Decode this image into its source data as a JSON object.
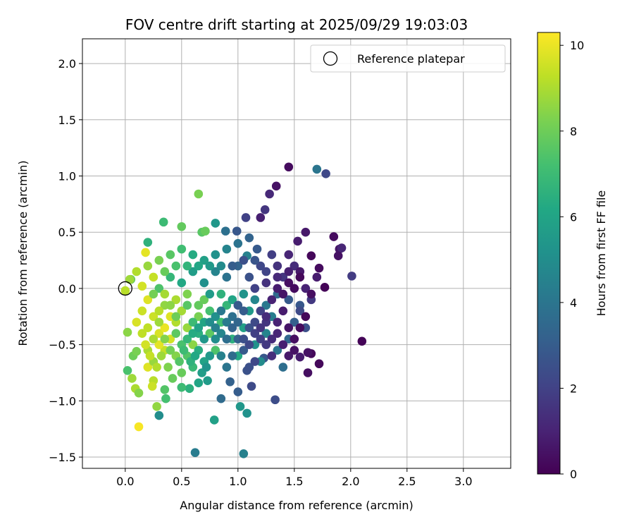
{
  "chart_data": {
    "type": "scatter",
    "title": "FOV centre drift starting at 2025/09/29 19:03:03",
    "xlabel": "Angular distance from reference (arcmin)",
    "ylabel": "Rotation from reference (arcmin)",
    "xlim": [
      -0.38,
      3.42
    ],
    "ylim": [
      -1.6,
      2.22
    ],
    "x_ticks": [
      0.0,
      0.5,
      1.0,
      1.5,
      2.0,
      2.5,
      3.0
    ],
    "x_tick_labels": [
      "0.0",
      "0.5",
      "1.0",
      "1.5",
      "2.0",
      "2.5",
      "3.0"
    ],
    "y_ticks": [
      -1.5,
      -1.0,
      -0.5,
      0.0,
      0.5,
      1.0,
      1.5,
      2.0
    ],
    "y_tick_labels": [
      "−1.5",
      "−1.0",
      "−0.5",
      "0.0",
      "0.5",
      "1.0",
      "1.5",
      "2.0"
    ],
    "grid": true,
    "legend": {
      "position": "top-right",
      "entries": [
        "Reference platepar"
      ]
    },
    "colorbar": {
      "label": "Hours from first FF file",
      "range": [
        0,
        10.3
      ],
      "ticks": [
        0,
        2,
        4,
        6,
        8,
        10
      ],
      "tick_labels": [
        "0",
        "2",
        "4",
        "6",
        "8",
        "10"
      ],
      "colormap": "viridis"
    },
    "reference_point": {
      "x": 0.0,
      "y": 0.0
    },
    "points": [
      [
        2.1,
        -0.47,
        0.1
      ],
      [
        1.45,
        1.08,
        0.3
      ],
      [
        1.72,
        -0.67,
        0.2
      ],
      [
        1.62,
        -0.75,
        0.4
      ],
      [
        1.78,
        1.02,
        2.2
      ],
      [
        1.7,
        1.06,
        4.0
      ],
      [
        1.9,
        0.35,
        0.6
      ],
      [
        1.92,
        0.36,
        1.1
      ],
      [
        2.01,
        0.11,
        1.8
      ],
      [
        1.85,
        0.46,
        0.3
      ],
      [
        1.89,
        0.29,
        0.5
      ],
      [
        1.34,
        0.91,
        0.5
      ],
      [
        1.28,
        0.84,
        1.2
      ],
      [
        1.24,
        0.7,
        1.6
      ],
      [
        1.2,
        0.63,
        0.9
      ],
      [
        1.07,
        0.63,
        2.0
      ],
      [
        1.6,
        0.5,
        0.7
      ],
      [
        1.53,
        0.42,
        0.8
      ],
      [
        1.65,
        0.29,
        0.2
      ],
      [
        1.72,
        0.18,
        0.3
      ],
      [
        1.77,
        0.01,
        0.1
      ],
      [
        1.65,
        -0.58,
        0.2
      ],
      [
        1.62,
        -0.57,
        0.5
      ],
      [
        1.55,
        -0.61,
        0.8
      ],
      [
        1.33,
        -0.99,
        2.4
      ],
      [
        1.08,
        -0.73,
        2.6
      ],
      [
        1.12,
        -0.87,
        2.3
      ],
      [
        1.23,
        -0.62,
        2.8
      ],
      [
        1.05,
        -1.47,
        4.5
      ],
      [
        1.08,
        -1.11,
        5.2
      ],
      [
        0.79,
        -1.17,
        5.8
      ],
      [
        0.62,
        -1.46,
        4.3
      ],
      [
        0.3,
        -1.13,
        5.0
      ],
      [
        1.0,
        -0.92,
        3.0
      ],
      [
        0.85,
        -0.98,
        3.6
      ],
      [
        0.93,
        -0.83,
        3.2
      ],
      [
        1.02,
        -1.05,
        5.4
      ],
      [
        0.73,
        -0.82,
        5.6
      ],
      [
        0.65,
        -0.84,
        6.0
      ],
      [
        0.57,
        -0.89,
        6.5
      ],
      [
        0.5,
        -0.88,
        7.0
      ],
      [
        0.36,
        -0.98,
        7.2
      ],
      [
        0.35,
        -0.9,
        7.5
      ],
      [
        0.28,
        -1.05,
        8.6
      ],
      [
        0.25,
        -0.82,
        9.2
      ],
      [
        0.24,
        -0.87,
        9.5
      ],
      [
        0.2,
        -0.7,
        9.8
      ],
      [
        0.12,
        -1.23,
        10.2
      ],
      [
        0.09,
        -0.89,
        9.0
      ],
      [
        0.12,
        -0.93,
        8.4
      ],
      [
        0.06,
        -0.8,
        8.8
      ],
      [
        0.02,
        -0.73,
        7.3
      ],
      [
        0.07,
        -0.6,
        8.0
      ],
      [
        0.1,
        -0.56,
        8.2
      ],
      [
        0.65,
        0.84,
        8.2
      ],
      [
        0.68,
        0.5,
        7.6
      ],
      [
        0.71,
        0.51,
        7.9
      ],
      [
        0.34,
        0.59,
        7.0
      ],
      [
        0.5,
        0.55,
        7.8
      ],
      [
        0.8,
        0.58,
        5.4
      ],
      [
        0.89,
        0.51,
        3.8
      ],
      [
        0.99,
        0.51,
        2.8
      ],
      [
        1.17,
        0.35,
        2.9
      ],
      [
        1.08,
        0.29,
        4.5
      ],
      [
        0.2,
        0.41,
        6.6
      ],
      [
        0.18,
        0.32,
        9.9
      ],
      [
        0.05,
        0.08,
        7.9
      ],
      [
        0.0,
        -0.02,
        9.2
      ],
      [
        0.02,
        -0.39,
        8.5
      ],
      [
        0.04,
        0.08,
        8.8
      ],
      [
        0.15,
        0.02,
        9.6
      ],
      [
        0.2,
        -0.1,
        9.8
      ],
      [
        0.25,
        -0.25,
        9.5
      ],
      [
        0.3,
        -0.4,
        9.7
      ],
      [
        0.35,
        -0.55,
        9.4
      ],
      [
        0.4,
        -0.45,
        9.6
      ],
      [
        0.45,
        -0.3,
        9.1
      ],
      [
        0.5,
        -0.2,
        8.9
      ],
      [
        0.55,
        -0.35,
        8.7
      ],
      [
        0.6,
        -0.5,
        8.5
      ],
      [
        0.65,
        -0.25,
        8.2
      ],
      [
        0.7,
        -0.1,
        7.9
      ],
      [
        0.75,
        -0.4,
        7.7
      ],
      [
        0.8,
        -0.55,
        7.4
      ],
      [
        0.85,
        -0.3,
        7.1
      ],
      [
        0.9,
        -0.15,
        6.8
      ],
      [
        0.95,
        -0.45,
        6.5
      ],
      [
        1.0,
        -0.6,
        6.2
      ],
      [
        1.05,
        -0.35,
        5.8
      ],
      [
        1.1,
        -0.2,
        5.5
      ],
      [
        1.15,
        -0.5,
        5.2
      ],
      [
        1.2,
        -0.65,
        4.9
      ],
      [
        1.25,
        -0.4,
        4.6
      ],
      [
        1.3,
        -0.25,
        4.3
      ],
      [
        1.35,
        -0.55,
        4.0
      ],
      [
        1.4,
        -0.7,
        3.7
      ],
      [
        1.45,
        -0.45,
        3.4
      ],
      [
        1.5,
        -0.3,
        3.1
      ],
      [
        1.55,
        -0.15,
        2.8
      ],
      [
        1.6,
        -0.35,
        2.5
      ],
      [
        1.2,
        0.2,
        2.2
      ],
      [
        1.3,
        0.3,
        1.9
      ],
      [
        1.4,
        0.1,
        1.6
      ],
      [
        1.5,
        0.2,
        1.3
      ],
      [
        1.6,
        0.0,
        1.0
      ],
      [
        1.7,
        0.1,
        0.8
      ],
      [
        1.1,
        0.1,
        2.6
      ],
      [
        1.0,
        0.2,
        3.3
      ],
      [
        0.9,
        0.1,
        3.9
      ],
      [
        0.8,
        0.15,
        4.6
      ],
      [
        0.7,
        0.05,
        5.1
      ],
      [
        0.6,
        0.15,
        5.7
      ],
      [
        0.5,
        0.05,
        6.2
      ],
      [
        0.4,
        0.1,
        6.8
      ],
      [
        0.3,
        0.0,
        7.4
      ],
      [
        0.25,
        -0.05,
        8.1
      ],
      [
        0.35,
        -0.15,
        8.6
      ],
      [
        0.45,
        -0.1,
        9.0
      ],
      [
        0.55,
        -0.05,
        8.3
      ],
      [
        0.65,
        -0.15,
        7.8
      ],
      [
        0.75,
        -0.2,
        7.2
      ],
      [
        0.85,
        -0.05,
        6.6
      ],
      [
        0.95,
        -0.1,
        6.0
      ],
      [
        1.05,
        -0.05,
        5.3
      ],
      [
        1.15,
        -0.1,
        4.7
      ],
      [
        1.25,
        -0.15,
        4.1
      ],
      [
        1.35,
        -0.05,
        3.5
      ],
      [
        1.45,
        -0.1,
        2.9
      ],
      [
        1.55,
        -0.2,
        2.3
      ],
      [
        1.65,
        -0.1,
        1.7
      ],
      [
        0.15,
        -0.4,
        9.3
      ],
      [
        0.2,
        -0.55,
        9.0
      ],
      [
        0.25,
        -0.65,
        8.7
      ],
      [
        0.3,
        -0.5,
        9.9
      ],
      [
        0.35,
        -0.35,
        10.0
      ],
      [
        0.4,
        -0.25,
        9.8
      ],
      [
        0.45,
        -0.6,
        8.4
      ],
      [
        0.5,
        -0.75,
        7.9
      ],
      [
        0.55,
        -0.6,
        7.5
      ],
      [
        0.6,
        -0.7,
        6.9
      ],
      [
        0.65,
        -0.55,
        6.4
      ],
      [
        0.7,
        -0.65,
        5.9
      ],
      [
        0.75,
        -0.6,
        5.5
      ],
      [
        0.8,
        -0.45,
        5.0
      ],
      [
        0.85,
        -0.6,
        4.5
      ],
      [
        0.9,
        -0.7,
        4.0
      ],
      [
        0.95,
        -0.6,
        3.6
      ],
      [
        1.0,
        -0.45,
        3.2
      ],
      [
        1.05,
        -0.55,
        2.9
      ],
      [
        1.1,
        -0.7,
        2.5
      ],
      [
        1.15,
        -0.65,
        2.2
      ],
      [
        1.2,
        -0.45,
        1.9
      ],
      [
        1.25,
        -0.3,
        1.6
      ],
      [
        1.3,
        -0.45,
        1.3
      ],
      [
        1.35,
        -0.3,
        1.0
      ],
      [
        1.4,
        -0.2,
        0.8
      ],
      [
        1.45,
        -0.35,
        0.6
      ],
      [
        1.5,
        -0.45,
        0.4
      ],
      [
        1.55,
        -0.35,
        0.3
      ],
      [
        1.6,
        -0.25,
        0.2
      ],
      [
        0.6,
        0.3,
        6.3
      ],
      [
        0.7,
        0.25,
        5.8
      ],
      [
        0.8,
        0.3,
        5.2
      ],
      [
        0.9,
        0.35,
        4.6
      ],
      [
        1.0,
        0.4,
        3.9
      ],
      [
        1.1,
        0.45,
        3.3
      ],
      [
        0.5,
        0.35,
        7.1
      ],
      [
        0.4,
        0.3,
        7.6
      ],
      [
        0.3,
        0.25,
        8.2
      ],
      [
        0.2,
        0.2,
        8.7
      ],
      [
        0.1,
        0.15,
        9.1
      ],
      [
        0.25,
        0.1,
        9.4
      ],
      [
        1.15,
        0.25,
        2.7
      ],
      [
        1.25,
        0.15,
        2.1
      ],
      [
        1.35,
        0.2,
        1.5
      ],
      [
        1.45,
        0.3,
        1.1
      ],
      [
        1.55,
        0.15,
        0.7
      ],
      [
        1.65,
        -0.05,
        0.4
      ],
      [
        0.3,
        -0.2,
        9.2
      ],
      [
        0.35,
        -0.05,
        8.9
      ],
      [
        0.4,
        -0.15,
        8.5
      ],
      [
        0.45,
        -0.25,
        8.0
      ],
      [
        0.55,
        -0.15,
        7.6
      ],
      [
        0.6,
        -0.3,
        7.0
      ],
      [
        0.65,
        -0.4,
        6.5
      ],
      [
        0.7,
        -0.3,
        6.0
      ],
      [
        0.75,
        -0.05,
        5.6
      ],
      [
        0.8,
        -0.25,
        5.1
      ],
      [
        0.85,
        -0.4,
        4.7
      ],
      [
        0.9,
        -0.3,
        4.2
      ],
      [
        0.95,
        -0.25,
        3.8
      ],
      [
        1.0,
        -0.3,
        3.4
      ],
      [
        1.05,
        -0.2,
        3.0
      ],
      [
        1.1,
        -0.35,
        2.6
      ],
      [
        1.15,
        -0.3,
        2.3
      ],
      [
        1.2,
        -0.2,
        2.0
      ],
      [
        1.25,
        -0.5,
        1.7
      ],
      [
        1.3,
        -0.6,
        1.4
      ],
      [
        1.35,
        -0.4,
        1.1
      ],
      [
        1.4,
        -0.5,
        0.9
      ],
      [
        1.45,
        -0.6,
        0.7
      ],
      [
        1.5,
        -0.55,
        0.5
      ],
      [
        0.1,
        -0.3,
        9.7
      ],
      [
        0.15,
        -0.2,
        9.5
      ],
      [
        0.2,
        -0.35,
        9.3
      ],
      [
        0.25,
        -0.45,
        9.0
      ],
      [
        0.3,
        -0.3,
        8.8
      ],
      [
        0.35,
        -0.45,
        8.4
      ],
      [
        0.4,
        -0.55,
        8.1
      ],
      [
        0.45,
        -0.4,
        7.7
      ],
      [
        0.5,
        -0.5,
        7.3
      ],
      [
        0.55,
        -0.45,
        6.8
      ],
      [
        0.6,
        -0.4,
        6.3
      ],
      [
        0.65,
        -0.35,
        5.9
      ],
      [
        0.7,
        -0.45,
        5.4
      ],
      [
        0.75,
        -0.3,
        5.0
      ],
      [
        0.8,
        -0.35,
        4.5
      ],
      [
        0.85,
        -0.2,
        4.1
      ],
      [
        0.9,
        -0.45,
        3.7
      ],
      [
        0.95,
        -0.35,
        3.3
      ],
      [
        1.0,
        -0.15,
        2.9
      ],
      [
        1.05,
        -0.45,
        2.5
      ],
      [
        1.1,
        -0.5,
        2.2
      ],
      [
        1.15,
        -0.4,
        1.9
      ],
      [
        1.2,
        -0.35,
        1.6
      ],
      [
        1.25,
        -0.25,
        1.3
      ],
      [
        1.3,
        -0.1,
        1.0
      ],
      [
        1.35,
        0.0,
        0.8
      ],
      [
        1.4,
        -0.05,
        0.6
      ],
      [
        1.45,
        0.05,
        0.4
      ],
      [
        1.5,
        0.0,
        0.3
      ],
      [
        1.55,
        0.1,
        0.2
      ],
      [
        0.95,
        0.2,
        3.0
      ],
      [
        1.05,
        0.25,
        2.5
      ],
      [
        1.15,
        0.0,
        2.0
      ],
      [
        1.25,
        0.05,
        1.5
      ],
      [
        1.35,
        0.1,
        1.2
      ],
      [
        1.45,
        0.15,
        0.9
      ],
      [
        0.55,
        0.2,
        6.7
      ],
      [
        0.45,
        0.2,
        7.3
      ],
      [
        0.35,
        0.15,
        7.9
      ],
      [
        0.65,
        0.2,
        6.1
      ],
      [
        0.75,
        0.2,
        5.5
      ],
      [
        0.85,
        0.2,
        4.9
      ],
      [
        0.18,
        -0.5,
        9.6
      ],
      [
        0.22,
        -0.6,
        9.4
      ],
      [
        0.28,
        -0.7,
        9.1
      ],
      [
        0.32,
        -0.6,
        8.8
      ],
      [
        0.38,
        -0.7,
        8.3
      ],
      [
        0.42,
        -0.8,
        7.9
      ],
      [
        0.48,
        -0.65,
        7.5
      ],
      [
        0.52,
        -0.55,
        7.0
      ],
      [
        0.58,
        -0.65,
        6.6
      ],
      [
        0.62,
        -0.6,
        6.2
      ],
      [
        0.68,
        -0.75,
        5.7
      ],
      [
        0.72,
        -0.7,
        5.3
      ]
    ]
  }
}
